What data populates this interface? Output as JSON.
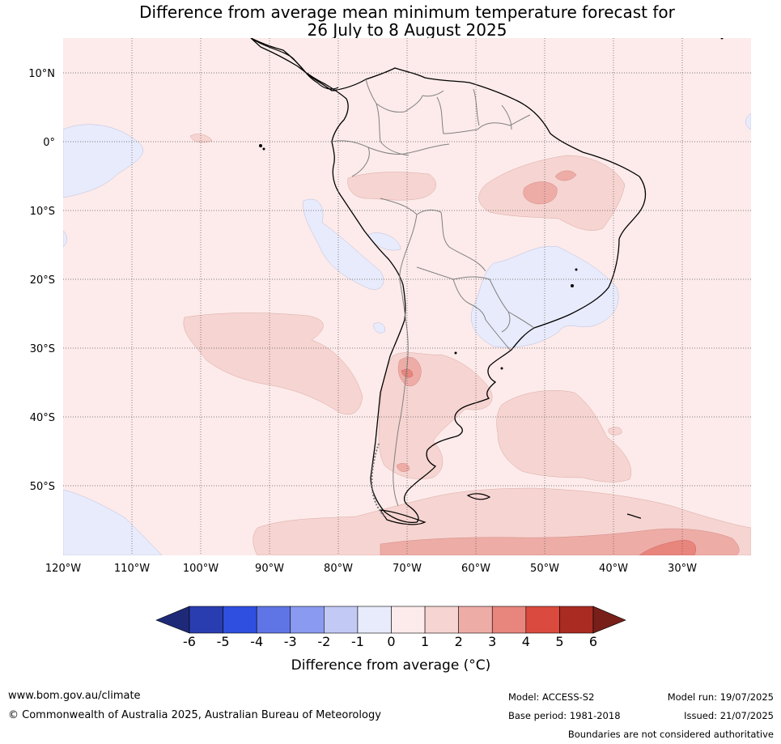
{
  "title": {
    "line1": "Difference from average mean minimum temperature forecast for",
    "line2": "26 July to 8 August 2025"
  },
  "map": {
    "lat_labels": [
      "10°N",
      "0°",
      "10°S",
      "20°S",
      "30°S",
      "40°S",
      "50°S"
    ],
    "lon_labels": [
      "120°W",
      "110°W",
      "100°W",
      "90°W",
      "80°W",
      "70°W",
      "60°W",
      "50°W",
      "40°W",
      "30°W"
    ],
    "region": "South America",
    "lat_range": [
      -60,
      15
    ],
    "lon_range": [
      -120,
      -20
    ]
  },
  "colorbar": {
    "title": "Difference from average (°C)",
    "ticks": [
      "-6",
      "-5",
      "-4",
      "-3",
      "-2",
      "-1",
      "0",
      "1",
      "2",
      "3",
      "4",
      "5",
      "6"
    ],
    "colors": {
      "below_-6": "#1e2a78",
      "-6_-5": "#2a3db0",
      "-5_-4": "#2f4fe0",
      "-4_-3": "#5f75e6",
      "-3_-2": "#8a9af0",
      "-2_-1": "#c2c9f5",
      "-1_0": "#e8ebfb",
      "0_1": "#fcebea",
      "1_2": "#f6d4d1",
      "2_3": "#eeaca7",
      "3_4": "#e8857d",
      "4_5": "#db4a3e",
      "5_6": "#aa2b22",
      "above_6": "#781f1a"
    }
  },
  "footer": {
    "url": "www.bom.gov.au/climate",
    "copyright": "© Commonwealth of Australia 2025, Australian Bureau of Meteorology",
    "model": "Model: ACCESS-S2",
    "base_period": "Base period: 1981-2018",
    "model_run": "Model run: 19/07/2025",
    "issued": "Issued: 21/07/2025",
    "disclaimer": "Boundaries are not considered authoritative"
  }
}
